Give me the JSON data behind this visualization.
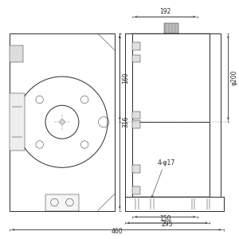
{
  "bg_color": "#ffffff",
  "line_color": "#2a2a2a",
  "lw_main": 0.7,
  "lw_thin": 0.35,
  "lw_dim": 0.4,
  "annotations": {
    "dim_192": "192",
    "dim_316": "316",
    "dim_160": "160",
    "dim_200": "φ200",
    "dim_4phi17": "4-φ17",
    "dim_150": "150",
    "dim_295": "295",
    "dim_460": "460"
  },
  "fontsize": 5.5
}
